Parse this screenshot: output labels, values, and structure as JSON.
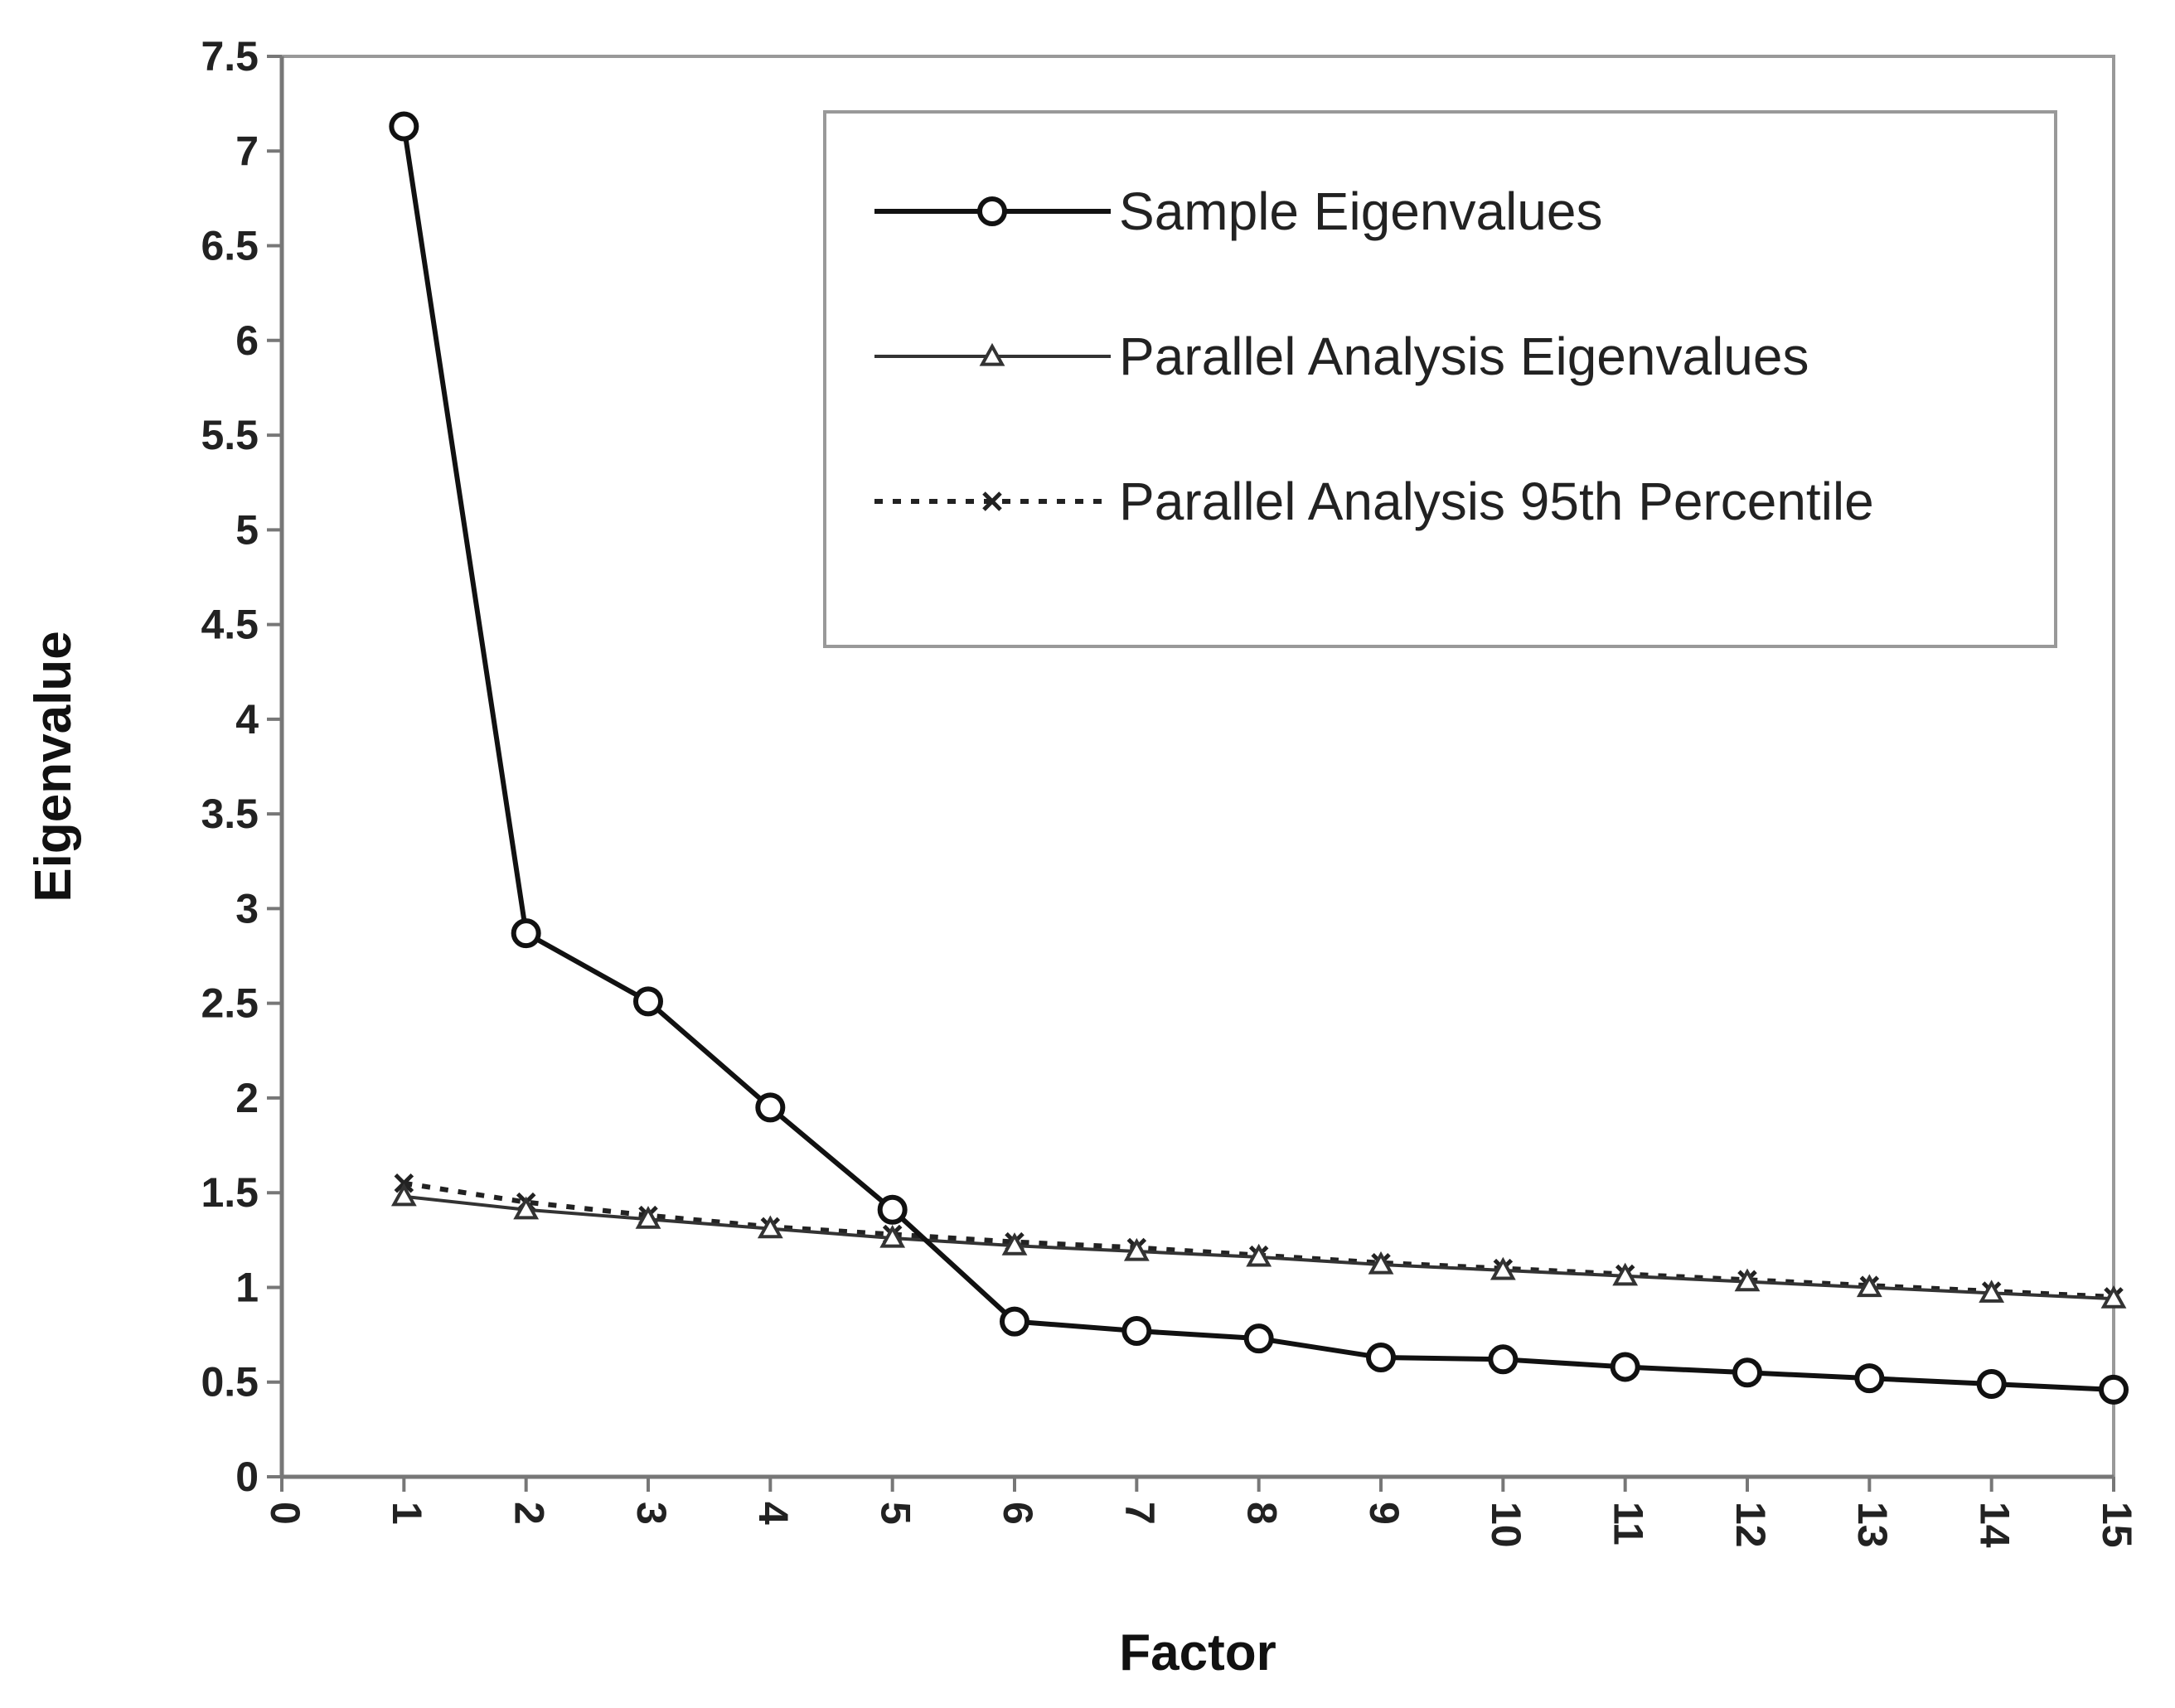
{
  "chart_data": {
    "type": "line",
    "xlabel": "Factor",
    "ylabel": "Eigenvalue",
    "xlim": [
      0,
      15
    ],
    "ylim": [
      0,
      7.5
    ],
    "x_ticks": [
      "0",
      "1",
      "2",
      "3",
      "4",
      "5",
      "6",
      "7",
      "8",
      "9",
      "10",
      "11",
      "12",
      "13",
      "14",
      "15"
    ],
    "y_ticks": [
      "0",
      "0.5",
      "1",
      "1.5",
      "2",
      "2.5",
      "3",
      "3.5",
      "4",
      "4.5",
      "5",
      "5.5",
      "6",
      "6.5",
      "7",
      "7.5"
    ],
    "grid": false,
    "legend_position": "top-right",
    "x": [
      1,
      2,
      3,
      4,
      5,
      6,
      7,
      8,
      9,
      10,
      11,
      12,
      13,
      14,
      15
    ],
    "series": [
      {
        "name": "Sample Eigenvalues",
        "marker": "circle",
        "style": "solid-thick",
        "color": "#111111",
        "values": [
          7.13,
          2.87,
          2.51,
          1.95,
          1.41,
          0.82,
          0.77,
          0.73,
          0.63,
          0.62,
          0.58,
          0.55,
          0.52,
          0.49,
          0.46
        ]
      },
      {
        "name": "Parallel Analysis Eigenvalues",
        "marker": "triangle",
        "style": "solid-thin",
        "color": "#333333",
        "values": [
          1.48,
          1.41,
          1.36,
          1.31,
          1.26,
          1.22,
          1.19,
          1.16,
          1.12,
          1.09,
          1.06,
          1.03,
          1.0,
          0.97,
          0.94
        ]
      },
      {
        "name": "Parallel Analysis 95th Percentile",
        "marker": "x",
        "style": "dotted",
        "color": "#222222",
        "values": [
          1.55,
          1.45,
          1.38,
          1.32,
          1.28,
          1.24,
          1.21,
          1.17,
          1.13,
          1.1,
          1.07,
          1.04,
          1.01,
          0.98,
          0.95
        ]
      }
    ]
  }
}
